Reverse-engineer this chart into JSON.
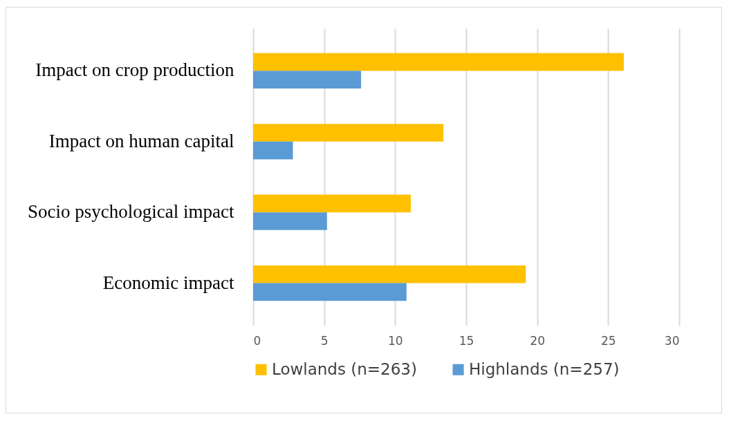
{
  "chart_data": {
    "type": "bar",
    "orientation": "horizontal",
    "categories": [
      "Impact on crop production",
      "Impact on human capital",
      "Socio psychological impact",
      "Economic impact"
    ],
    "series": [
      {
        "name": "Lowlands (n=263)",
        "color": "#ffc000",
        "values": [
          26.1,
          13.4,
          11.1,
          19.2
        ]
      },
      {
        "name": "Highlands (n=257)",
        "color": "#5b9bd5",
        "values": [
          7.6,
          2.8,
          5.2,
          10.8
        ]
      }
    ],
    "xlim": [
      0,
      30
    ],
    "xticks": [
      0,
      5,
      10,
      15,
      20,
      25,
      30
    ],
    "grid": "x",
    "legend": "bottom"
  }
}
